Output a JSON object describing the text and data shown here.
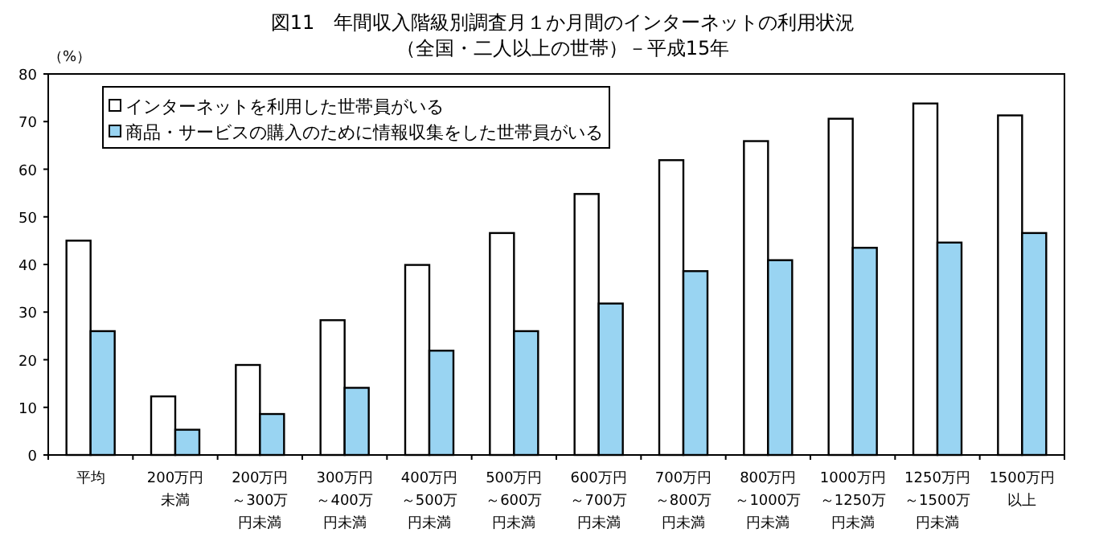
{
  "chart_data": {
    "type": "bar",
    "title": "図11　年間収入階級別調査月１か月間のインターネットの利用状況",
    "subtitle": "（全国・二人以上の世帯）－平成15年",
    "ylabel": "（%）",
    "categories": [
      "平均",
      "200万円未満",
      "200万円～300万円未満",
      "300万円～400万円未満",
      "400万円～500万円未満",
      "500万円～600万円未満",
      "600万円～700万円未満",
      "700万円～800万円未満",
      "800万円～1000万円未満",
      "1000万円～1250万円未満",
      "1250万円～1500万円未満",
      "1500万円以上"
    ],
    "series": [
      {
        "name": "インターネットを利用した世帯員がいる",
        "color": "#ffffff",
        "values": [
          45.0,
          12.3,
          18.9,
          28.3,
          39.9,
          46.6,
          54.8,
          61.9,
          65.9,
          70.6,
          73.8,
          71.3
        ]
      },
      {
        "name": "商品・サービスの購入のために情報収集をした世帯員がいる",
        "color": "#99d4f2",
        "values": [
          26.0,
          5.3,
          8.6,
          14.1,
          21.9,
          26.0,
          31.8,
          38.6,
          40.9,
          43.5,
          44.6,
          46.6
        ]
      }
    ],
    "ylim": [
      0,
      80
    ],
    "yticks": [
      0,
      10,
      20,
      30,
      40,
      50,
      60,
      70,
      80
    ],
    "grid": false,
    "legend": "top left"
  }
}
